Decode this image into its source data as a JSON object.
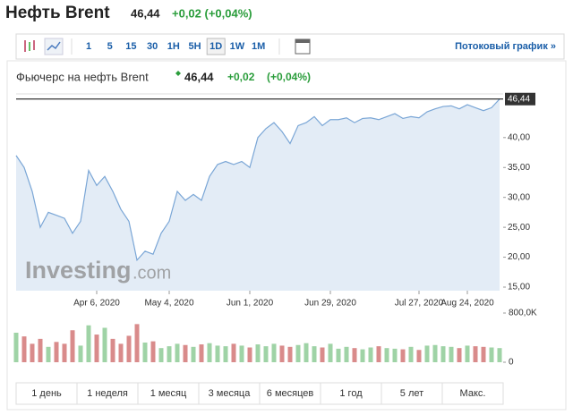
{
  "header": {
    "title": "Нефть Brent",
    "price": "46,44",
    "change": "+0,02 (+0,04%)"
  },
  "toolbar": {
    "intervals": [
      "1",
      "5",
      "15",
      "30",
      "1H",
      "5H",
      "1D",
      "1W",
      "1M"
    ],
    "active_interval": "1D",
    "stream_link": "Потоковый график »"
  },
  "chart_data": {
    "type": "line",
    "title": "Фьючерс на нефть Brent",
    "last_price": "46,44",
    "change": "+0,02",
    "change_pct": "(+0,04%)",
    "watermark_brand": "Investing",
    "watermark_domain": ".com",
    "categories": [
      null,
      null,
      null,
      null,
      null,
      null,
      null,
      null,
      null,
      null,
      "Apr 6, 2020",
      null,
      null,
      null,
      null,
      null,
      null,
      null,
      null,
      "May 4, 2020",
      null,
      null,
      null,
      null,
      null,
      null,
      null,
      null,
      null,
      "Jun 1, 2020",
      null,
      null,
      null,
      null,
      null,
      null,
      null,
      null,
      null,
      "Jun 29, 2020",
      null,
      null,
      null,
      null,
      null,
      null,
      null,
      null,
      null,
      null,
      "Jul 27, 2020",
      null,
      null,
      null,
      null,
      null,
      "Aug 24, 2020",
      null,
      null,
      null,
      null
    ],
    "series": [
      {
        "color": "#7aa6d6",
        "fill": "#e3ecf6",
        "values": [
          37,
          35,
          31,
          25,
          27.5,
          27,
          26.5,
          24,
          26,
          34.5,
          32,
          33.5,
          31,
          28,
          26,
          19.5,
          21,
          20.5,
          24,
          26,
          31,
          29.5,
          30.5,
          29.5,
          33.5,
          35.5,
          36,
          35.5,
          36,
          35,
          40,
          41.5,
          42.5,
          41,
          39,
          42,
          42.5,
          43.5,
          42,
          43,
          43,
          43.3,
          42.5,
          43.2,
          43.3,
          43,
          43.5,
          44,
          43.2,
          43.5,
          43.3,
          44.3,
          44.8,
          45.2,
          45.3,
          44.8,
          45.5,
          45,
          44.5,
          45,
          46.44
        ]
      }
    ],
    "ylim": [
      14.4,
      47.3
    ],
    "yticks": [
      {
        "value": 15,
        "label": "15,00"
      },
      {
        "value": 20,
        "label": "20,00"
      },
      {
        "value": 25,
        "label": "25,00"
      },
      {
        "value": 30,
        "label": "30,00"
      },
      {
        "value": 35,
        "label": "35,00"
      },
      {
        "value": 40,
        "label": "40,00"
      }
    ],
    "grid": false,
    "volume": {
      "up_color": "#9fd3a6",
      "down_color": "#d98b8b",
      "values": [
        480000,
        420000,
        300000,
        380000,
        250000,
        330000,
        300000,
        520000,
        270000,
        600000,
        450000,
        560000,
        380000,
        300000,
        430000,
        620000,
        320000,
        340000,
        230000,
        260000,
        300000,
        280000,
        250000,
        290000,
        310000,
        270000,
        260000,
        300000,
        270000,
        240000,
        290000,
        260000,
        300000,
        270000,
        250000,
        280000,
        310000,
        260000,
        240000,
        300000,
        220000,
        250000,
        230000,
        210000,
        240000,
        260000,
        230000,
        220000,
        210000,
        250000,
        200000,
        270000,
        280000,
        260000,
        250000,
        230000,
        270000,
        260000,
        250000,
        240000,
        230000
      ],
      "ylim": [
        0,
        800000
      ],
      "yticks": [
        {
          "value": 800000,
          "label": "800,0K"
        },
        0
      ]
    },
    "ranges": [
      "1 день",
      "1 неделя",
      "1 месяц",
      "3 месяца",
      "6 месяцев",
      "1 год",
      "5 лет",
      "Макс."
    ]
  }
}
